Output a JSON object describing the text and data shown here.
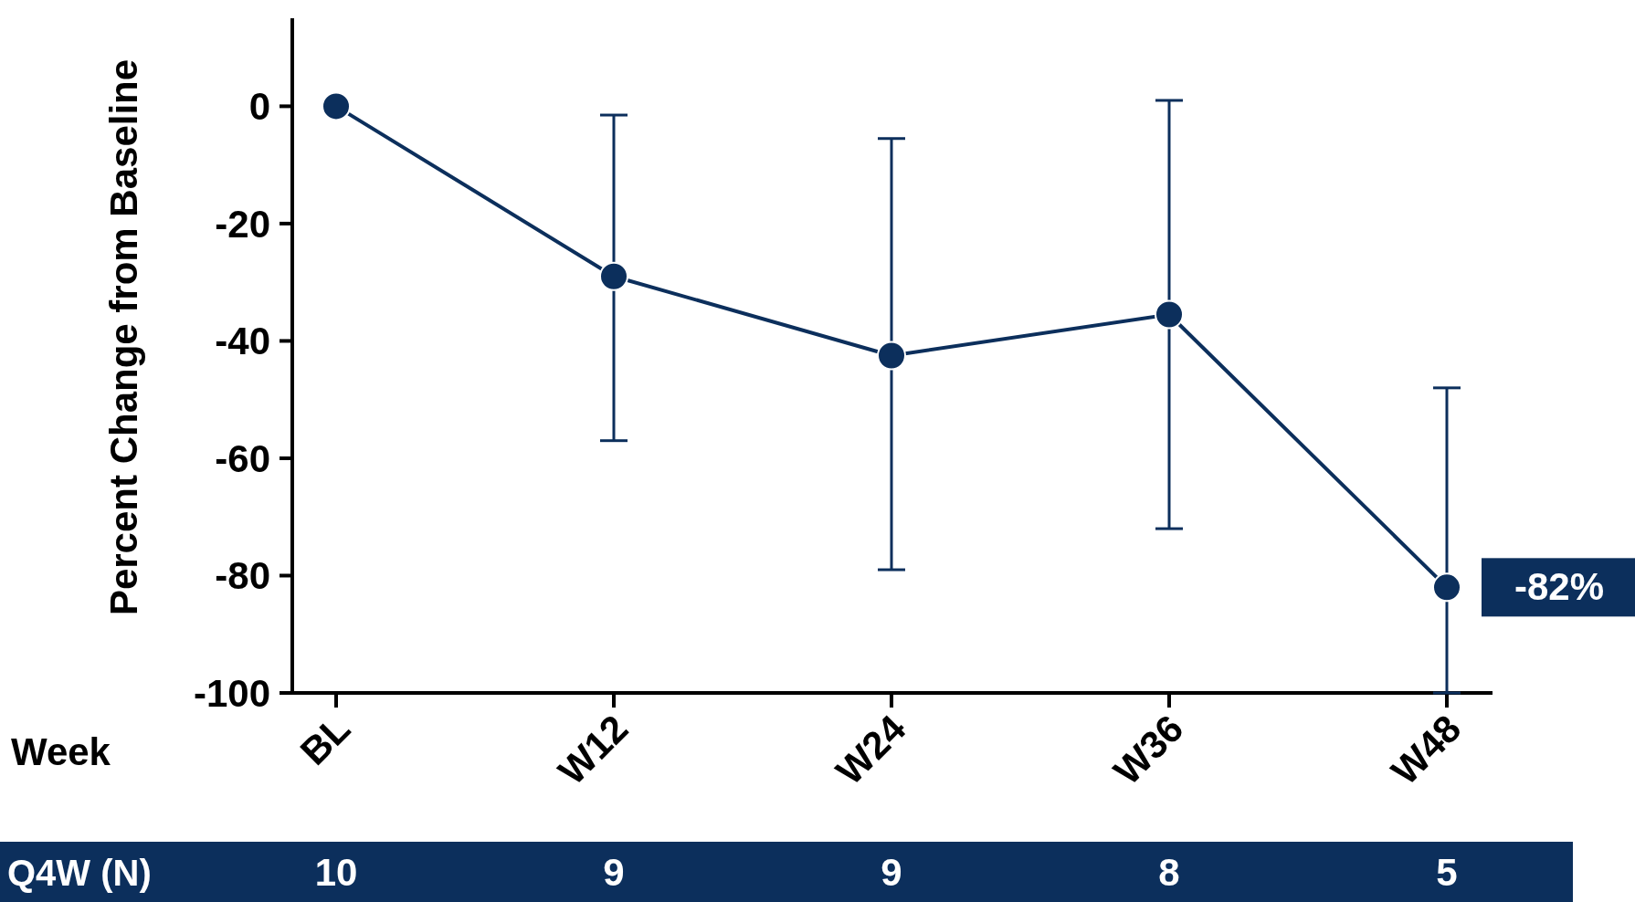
{
  "chart_data": {
    "type": "line",
    "ylabel": "Percent Change from Baseline",
    "categories": [
      "BL",
      "W12",
      "W24",
      "W36",
      "W48"
    ],
    "series": [
      {
        "color": "#0c2f5c",
        "values": [
          0,
          -29,
          -42.5,
          -35.5,
          -82
        ],
        "errors": [
          null,
          [
            -57,
            -1.5
          ],
          [
            -79,
            -5.5
          ],
          [
            -72,
            1
          ],
          [
            -100,
            -48
          ]
        ],
        "value_labels": [
          null,
          null,
          null,
          null,
          "-82%"
        ]
      }
    ],
    "ylim": [
      -100,
      15
    ],
    "yticks": [
      0,
      -20,
      -40,
      -60,
      -80,
      -100
    ],
    "marker": "circle",
    "line_style": "solid",
    "grid": false,
    "annotations": [
      "Week",
      "Q4W (N)",
      "10",
      "9",
      "9",
      "8",
      "5"
    ]
  }
}
